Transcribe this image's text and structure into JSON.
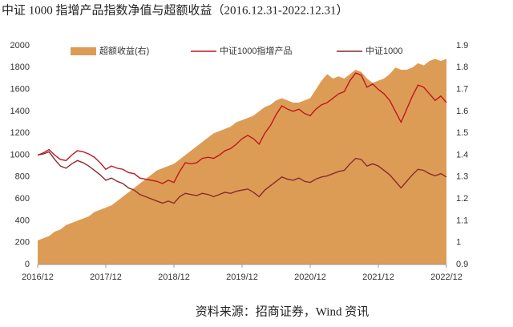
{
  "chart_data": {
    "type": "combo",
    "title": "中证 1000 指增产品指数净值与超额收益（2016.12.31-2022.12.31）",
    "source": "资料来源：招商证券，Wind 资讯",
    "categories": [
      "2016/12",
      null,
      null,
      null,
      null,
      null,
      null,
      null,
      null,
      null,
      null,
      null,
      "2017/12",
      null,
      null,
      null,
      null,
      null,
      null,
      null,
      null,
      null,
      null,
      null,
      "2018/12",
      null,
      null,
      null,
      null,
      null,
      null,
      null,
      null,
      null,
      null,
      null,
      "2019/12",
      null,
      null,
      null,
      null,
      null,
      null,
      null,
      null,
      null,
      null,
      null,
      "2020/12",
      null,
      null,
      null,
      null,
      null,
      null,
      null,
      null,
      null,
      null,
      null,
      "2021/12",
      null,
      null,
      null,
      null,
      null,
      null,
      null,
      null,
      null,
      null,
      null,
      "2022/12"
    ],
    "ylim": [
      0,
      2000
    ],
    "yticks": [
      0,
      200,
      400,
      600,
      800,
      1000,
      1200,
      1400,
      1600,
      1800,
      2000
    ],
    "y2lim": [
      0.9,
      1.9
    ],
    "y2ticks": [
      0.9,
      1,
      1.1,
      1.2,
      1.3,
      1.4,
      1.5,
      1.6,
      1.7,
      1.8,
      1.9
    ],
    "series": [
      {
        "name": "超额收益(右)",
        "type": "area",
        "axis": "y2",
        "color": "#dd9c55",
        "values": [
          1.01,
          1.02,
          1.03,
          1.05,
          1.06,
          1.08,
          1.09,
          1.1,
          1.11,
          1.12,
          1.14,
          1.15,
          1.16,
          1.17,
          1.19,
          1.21,
          1.23,
          1.25,
          1.27,
          1.29,
          1.31,
          1.33,
          1.34,
          1.35,
          1.36,
          1.38,
          1.4,
          1.42,
          1.44,
          1.46,
          1.48,
          1.5,
          1.51,
          1.52,
          1.53,
          1.55,
          1.56,
          1.57,
          1.58,
          1.6,
          1.62,
          1.63,
          1.65,
          1.66,
          1.65,
          1.64,
          1.64,
          1.65,
          1.66,
          1.7,
          1.74,
          1.77,
          1.75,
          1.76,
          1.75,
          1.77,
          1.79,
          1.78,
          1.75,
          1.73,
          1.74,
          1.75,
          1.77,
          1.8,
          1.79,
          1.79,
          1.8,
          1.82,
          1.81,
          1.83,
          1.84,
          1.83,
          1.84
        ]
      },
      {
        "name": "中证1000指增产品",
        "type": "line",
        "color": "#c0161e",
        "values": [
          1000,
          1020,
          1050,
          1000,
          960,
          950,
          1000,
          1040,
          1030,
          1010,
          980,
          930,
          870,
          900,
          880,
          870,
          840,
          830,
          790,
          780,
          770,
          760,
          740,
          770,
          750,
          850,
          930,
          920,
          930,
          970,
          980,
          970,
          1000,
          1040,
          1060,
          1100,
          1150,
          1180,
          1150,
          1100,
          1200,
          1270,
          1370,
          1450,
          1420,
          1400,
          1420,
          1380,
          1360,
          1420,
          1460,
          1480,
          1520,
          1560,
          1580,
          1680,
          1750,
          1730,
          1620,
          1650,
          1600,
          1560,
          1500,
          1400,
          1300,
          1420,
          1540,
          1640,
          1620,
          1560,
          1500,
          1540,
          1480
        ]
      },
      {
        "name": "中证1000",
        "type": "line",
        "color": "#8a2a2e",
        "values": [
          1000,
          1010,
          1030,
          960,
          900,
          880,
          920,
          950,
          930,
          900,
          860,
          820,
          770,
          790,
          760,
          740,
          700,
          680,
          640,
          620,
          600,
          580,
          560,
          580,
          560,
          620,
          650,
          640,
          630,
          650,
          640,
          620,
          640,
          660,
          650,
          670,
          680,
          690,
          660,
          620,
          680,
          720,
          760,
          800,
          780,
          770,
          790,
          760,
          750,
          780,
          800,
          810,
          830,
          850,
          860,
          920,
          970,
          960,
          900,
          920,
          900,
          860,
          820,
          760,
          700,
          760,
          820,
          870,
          860,
          830,
          810,
          830,
          800
        ]
      }
    ]
  }
}
